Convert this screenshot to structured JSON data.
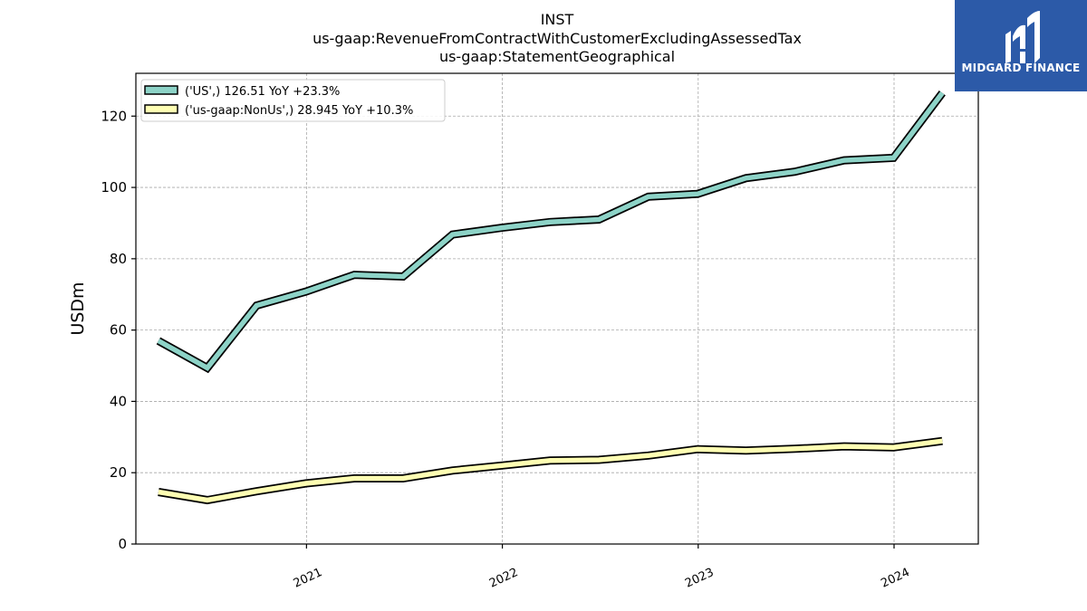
{
  "logo": {
    "text": "MIDGARD FINANCE",
    "icon": "midgard-m-icon",
    "background": "#2c5aa8"
  },
  "chart_data": {
    "type": "line",
    "title_lines": [
      "INST",
      "us-gaap:RevenueFromContractWithCustomerExcludingAssessedTax",
      "us-gaap:StatementGeographical"
    ],
    "xlabel": "",
    "ylabel": "USDm",
    "ylim": [
      0,
      132
    ],
    "yticks": [
      0,
      20,
      40,
      60,
      80,
      100,
      120
    ],
    "xlim": [
      "2020-02-18",
      "2024-06-06"
    ],
    "xticks": [
      {
        "label": "2021",
        "date": "2021-01-01"
      },
      {
        "label": "2022",
        "date": "2022-01-01"
      },
      {
        "label": "2023",
        "date": "2023-01-01"
      },
      {
        "label": "2024",
        "date": "2024-01-01"
      }
    ],
    "grid": true,
    "legend_position": "top-left",
    "x": [
      "2020-03-31",
      "2020-06-30",
      "2020-09-30",
      "2020-12-31",
      "2021-03-31",
      "2021-06-30",
      "2021-09-30",
      "2021-12-31",
      "2022-03-31",
      "2022-06-30",
      "2022-09-30",
      "2022-12-31",
      "2023-03-31",
      "2023-06-30",
      "2023-09-30",
      "2023-12-31",
      "2024-03-31"
    ],
    "series": [
      {
        "name": "('US',) 126.51 YoY +23.3%",
        "color": "#8dd3c7",
        "values": [
          57.0,
          49.4,
          66.9,
          70.8,
          75.5,
          75.0,
          86.8,
          88.7,
          90.3,
          91.0,
          97.4,
          98.2,
          102.6,
          104.4,
          107.6,
          108.3,
          126.5
        ]
      },
      {
        "name": "('us-gaap:NonUs',) 28.945 YoY +10.3%",
        "color": "#ffffb3",
        "values": [
          14.6,
          12.3,
          14.8,
          17.0,
          18.4,
          18.4,
          20.6,
          22.0,
          23.4,
          23.6,
          24.8,
          26.6,
          26.2,
          26.7,
          27.4,
          27.1,
          28.9
        ]
      }
    ]
  }
}
